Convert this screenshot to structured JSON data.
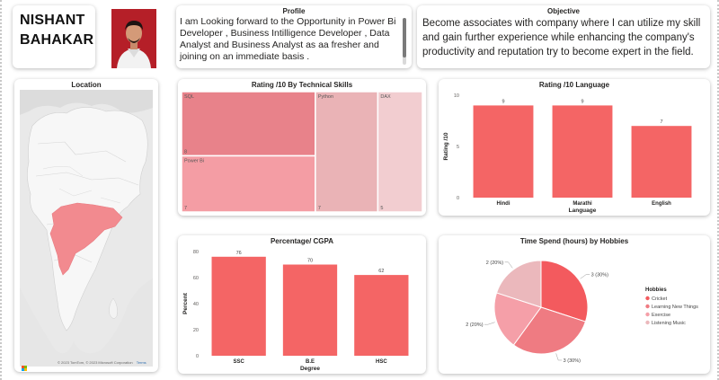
{
  "header": {
    "name_line1": "NISHANT",
    "name_line2": "BAHAKAR"
  },
  "profile": {
    "title": "Profile",
    "text": "I am Looking forward to the Opportunity in  Power Bi Developer , Business Intilligence Developer , Data Analyst and  Business Analyst as aa fresher and joining on an immediate basis ."
  },
  "objective": {
    "title": "Objective",
    "text": "Become associates with company where I can utilize my skill and gain further experience while enhancing the company's productivity and reputation try to become expert in the field."
  },
  "location": {
    "title": "Location",
    "copyright": "© 2023 TomTom, © 2023 Microsoft Corporation",
    "terms": "Terms"
  },
  "colors": {
    "accent": "#f46565",
    "treemap_sql": "#e8828a",
    "treemap_powerbi": "#f49da4",
    "treemap_python": "#eab3b6",
    "treemap_dax": "#f2cdd0",
    "pie_cricket": "#f35a5e",
    "pie_learning": "#ef7b82",
    "pie_exercise": "#f59fa8",
    "pie_music": "#ebb8bc"
  },
  "chart_data": [
    {
      "type": "treemap",
      "title": "Rating /10 By Technical Skills",
      "items": [
        {
          "label": "SQL",
          "value": 8
        },
        {
          "label": "Power Bi",
          "value": 7
        },
        {
          "label": "Python",
          "value": 7
        },
        {
          "label": "DAX",
          "value": 5
        }
      ]
    },
    {
      "type": "bar",
      "title": "Rating /10 Language",
      "categories": [
        "Hindi",
        "Marathi",
        "English"
      ],
      "values": [
        9,
        9,
        7
      ],
      "xlabel": "Language",
      "ylabel": "Rating /10",
      "ylim": [
        0,
        10
      ],
      "yticks": [
        0,
        5,
        10
      ]
    },
    {
      "type": "bar",
      "title": "Percentage/ CGPA",
      "categories": [
        "SSC",
        "B.E",
        "HSC"
      ],
      "values": [
        76,
        70,
        62
      ],
      "xlabel": "Degree",
      "ylabel": "Percent",
      "ylim": [
        0,
        80
      ],
      "yticks": [
        0,
        20,
        40,
        60,
        80
      ]
    },
    {
      "type": "pie",
      "title": "Time Spend (hours) by Hobbies",
      "legend_title": "Hobbies",
      "legend_position": "right",
      "slices": [
        {
          "label": "Cricket",
          "value": 3,
          "pct": "30%",
          "data_label": "3 (30%)"
        },
        {
          "label": "Learning New Things",
          "value": 3,
          "pct": "30%",
          "data_label": "3 (30%)"
        },
        {
          "label": "Exercise",
          "value": 2,
          "pct": "20%",
          "data_label": "2 (20%)"
        },
        {
          "label": "Listening Music",
          "value": 2,
          "pct": "20%",
          "data_label": "2 (20%)"
        }
      ]
    }
  ]
}
